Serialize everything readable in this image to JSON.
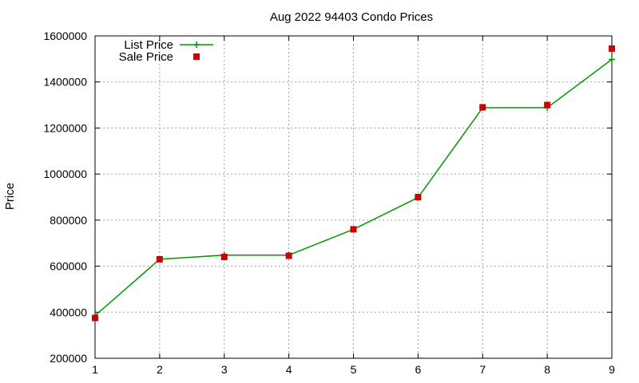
{
  "chart_data": {
    "type": "line",
    "title": "Aug 2022 94403 Condo Prices",
    "xlabel": "",
    "ylabel": "Price",
    "x": [
      1,
      2,
      3,
      4,
      5,
      6,
      7,
      8,
      9
    ],
    "xlim": [
      1,
      9
    ],
    "ylim": [
      200000,
      1600000
    ],
    "yticks": [
      200000,
      400000,
      600000,
      800000,
      1000000,
      1200000,
      1400000,
      1600000
    ],
    "xticks": [
      1,
      2,
      3,
      4,
      5,
      6,
      7,
      8,
      9
    ],
    "grid": true,
    "legend_position": "top-left",
    "series": [
      {
        "name": "List Price",
        "style": "line-plus",
        "color": "#009900",
        "values": [
          385000,
          630000,
          648000,
          648000,
          760000,
          898000,
          1288000,
          1288000,
          1498000
        ]
      },
      {
        "name": "Sale Price",
        "style": "square-points",
        "color": "#cc0000",
        "values": [
          375000,
          630000,
          640000,
          645000,
          760000,
          900000,
          1290000,
          1300000,
          1545000
        ]
      }
    ]
  }
}
